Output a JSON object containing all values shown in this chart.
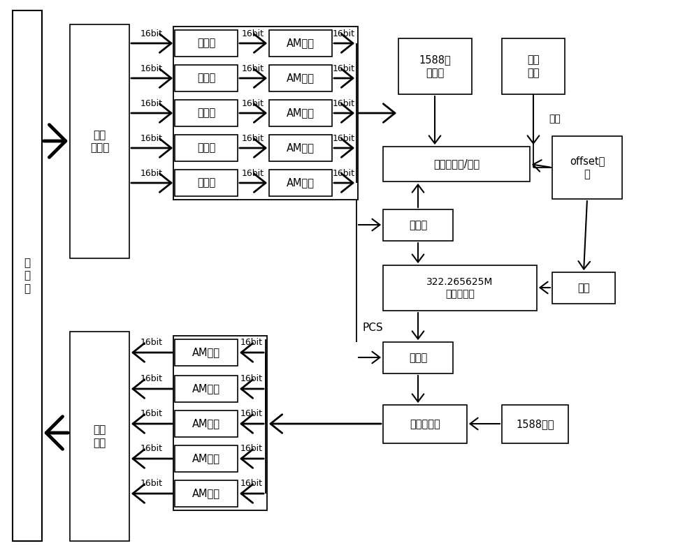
{
  "bg_color": "#ffffff",
  "line_color": "#000000",
  "box_color": "#ffffff",
  "text_color": "#000000",
  "recv_label": "收\n发\n器",
  "bitmix_top_label": "比特\n解混合",
  "bitmix_bot_label": "比特\n混合",
  "b1588_label": "1588报\n文识别",
  "bclk_label": "时钟\n鉴相",
  "buzhang_label": "补偿",
  "bts_extract_label": "时间戳提取/记录",
  "boffset_label": "offset计\n算",
  "bclock_label": "时钟",
  "bcnt_label": "322.265625M\n时间计数器",
  "bts_upper_label": "时间戳",
  "bts_lower_label": "时间戳",
  "btsadd_label": "时间戳添加",
  "b1588tx_label": "1588发包",
  "kuaitsb_label": "块同步",
  "amjc_label": "AM检测",
  "bit16_label": "16bit",
  "pcs_label": "PCS"
}
